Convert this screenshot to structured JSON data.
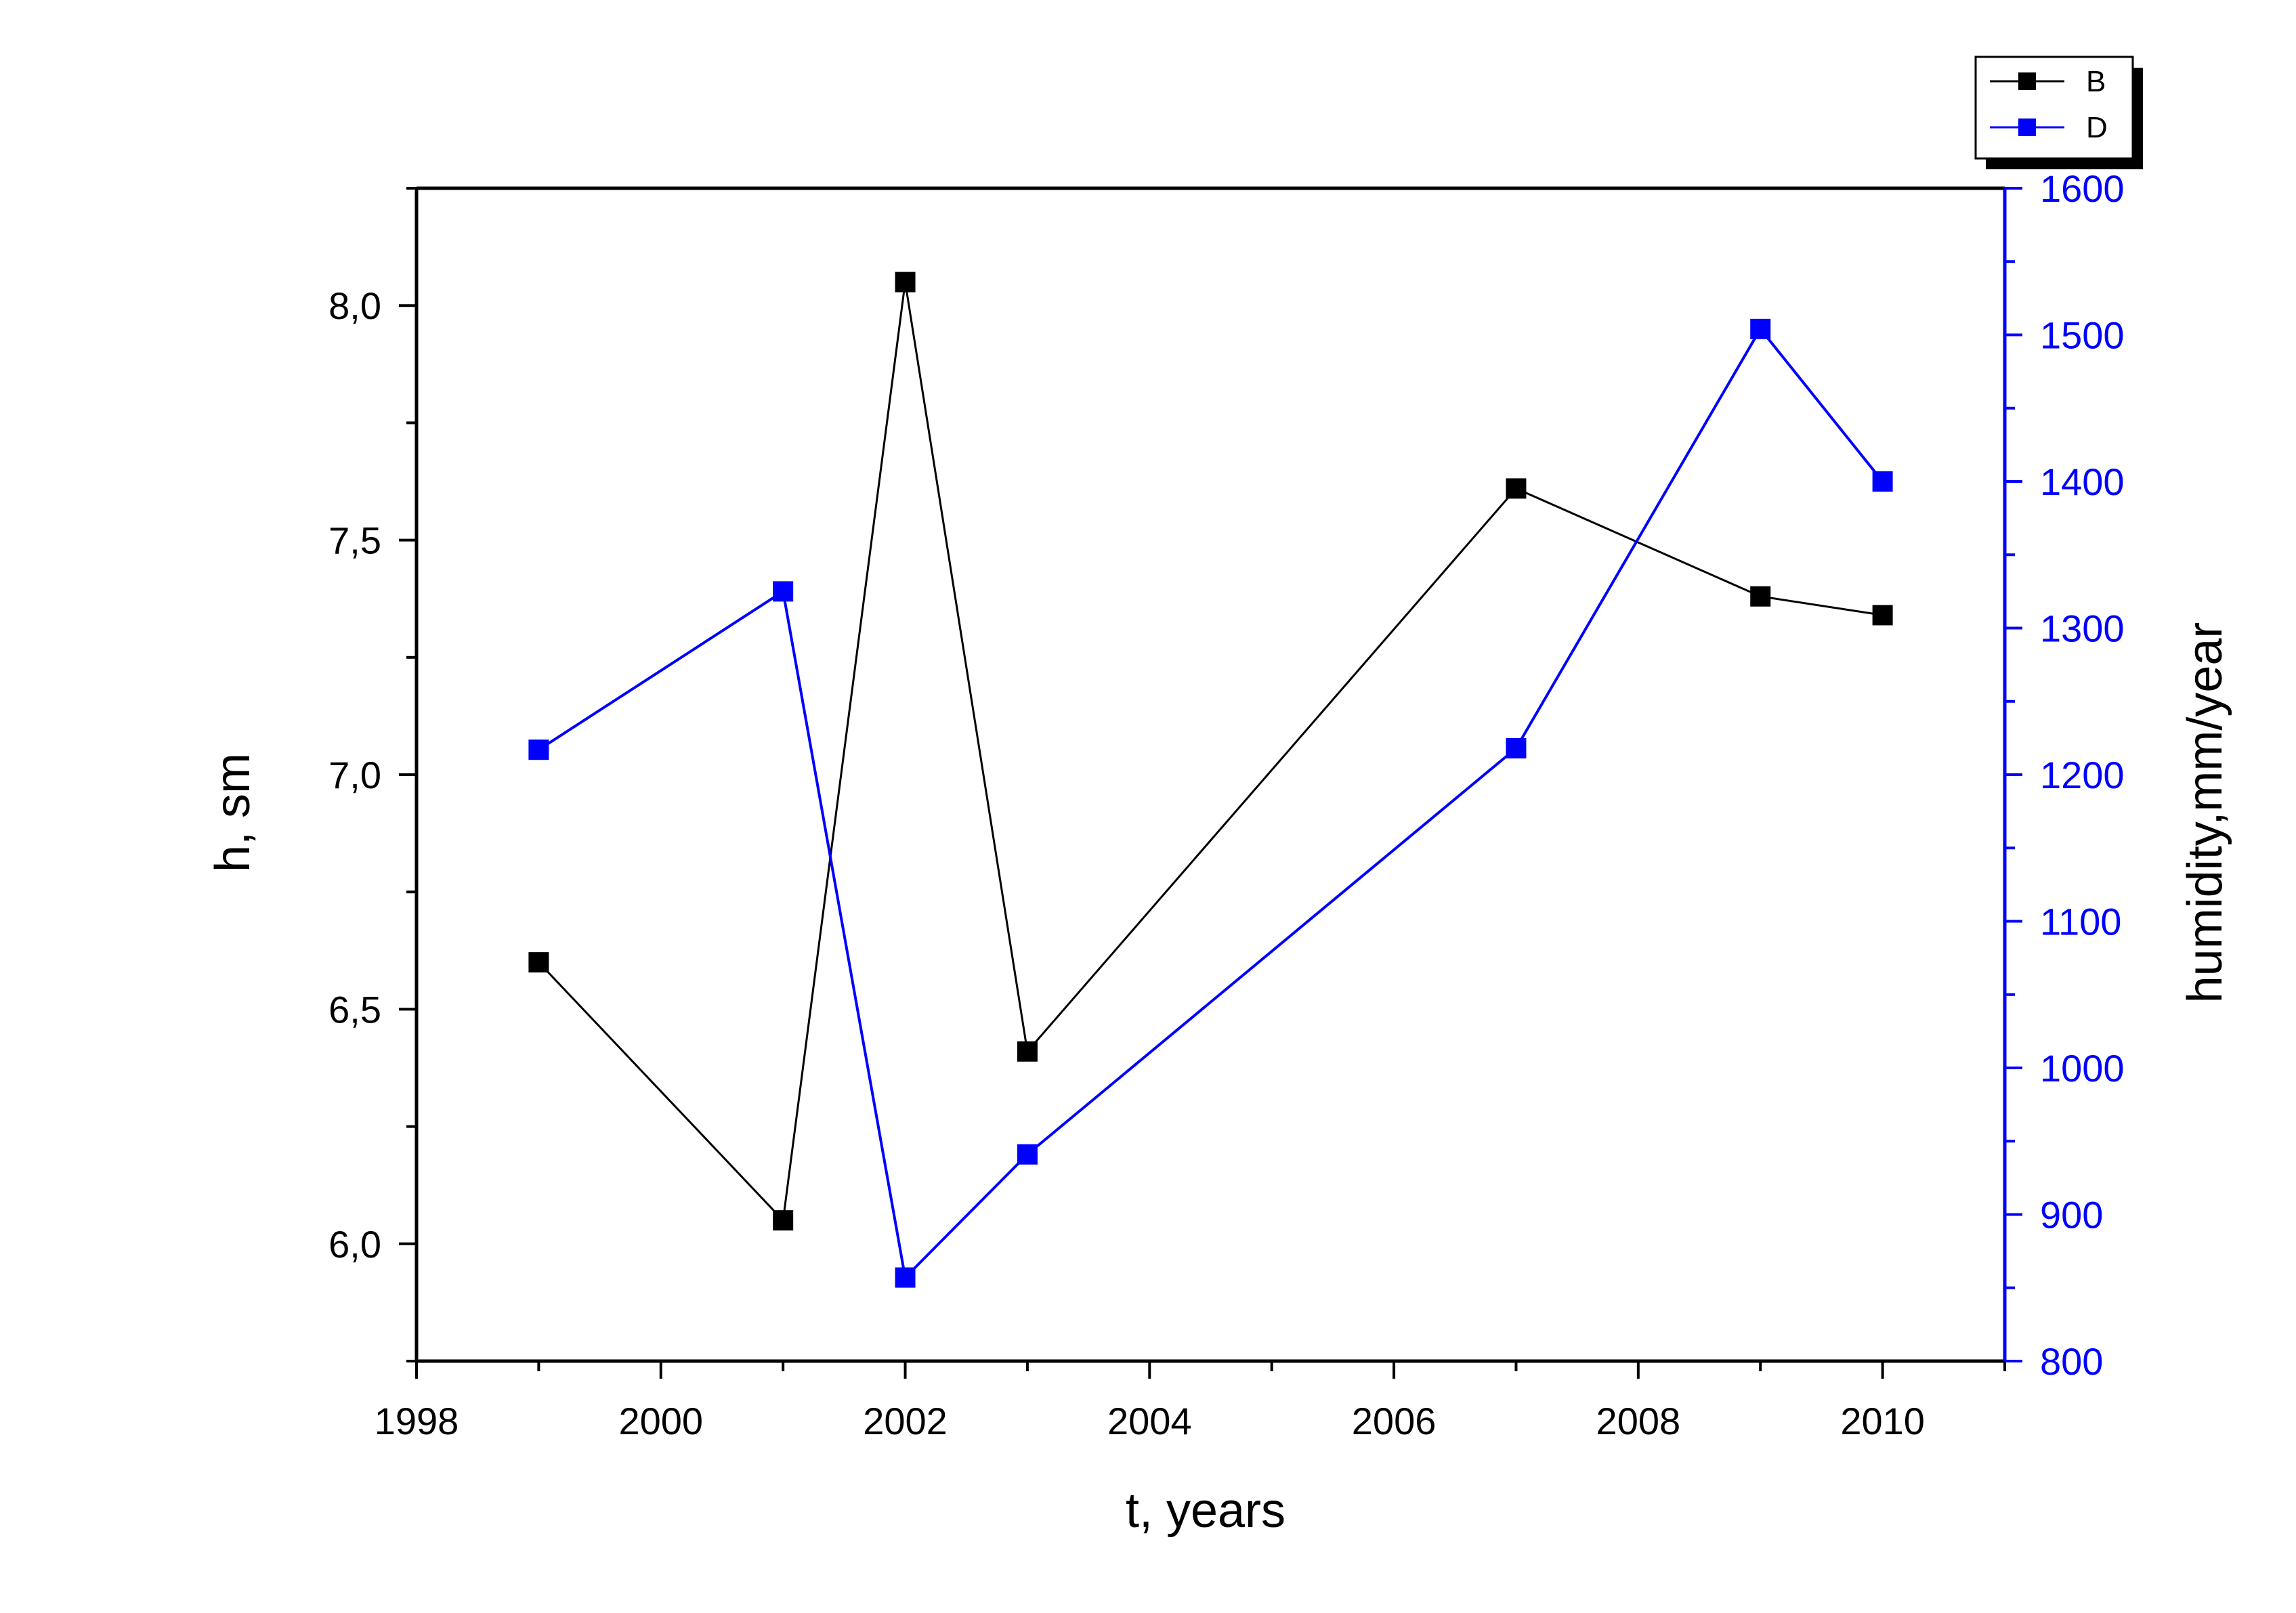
{
  "chart_data": {
    "type": "line",
    "title": "",
    "xlabel": "t, years",
    "ylabel_left": "h, sm",
    "ylabel_right": "humidity,mm/year",
    "x_ticks": [
      "1998",
      "2000",
      "2002",
      "2004",
      "2006",
      "2008",
      "2010"
    ],
    "y_left_ticks": [
      "6,0",
      "6,5",
      "7,0",
      "7,5",
      "8,0"
    ],
    "y_right_ticks": [
      "800",
      "900",
      "1000",
      "1100",
      "1200",
      "1300",
      "1400",
      "1500",
      "1600"
    ],
    "xlim": [
      1998,
      2011
    ],
    "ylim_left": [
      5.75,
      8.25
    ],
    "ylim_right": [
      800,
      1600
    ],
    "grid": false,
    "legend_position": "top-right",
    "colors": {
      "B": "#000000",
      "D": "#0000ff"
    },
    "series": [
      {
        "name": "B",
        "axis": "left",
        "x": [
          1999,
          2001,
          2002,
          2003,
          2007,
          2009,
          2010
        ],
        "values": [
          6.6,
          6.05,
          8.05,
          6.41,
          7.61,
          7.38,
          7.34
        ]
      },
      {
        "name": "D",
        "axis": "right",
        "x": [
          1999,
          2001,
          2002,
          2003,
          2007,
          2009,
          2010
        ],
        "values": [
          1217,
          1325,
          857,
          941,
          1218,
          1504,
          1400
        ]
      }
    ]
  }
}
